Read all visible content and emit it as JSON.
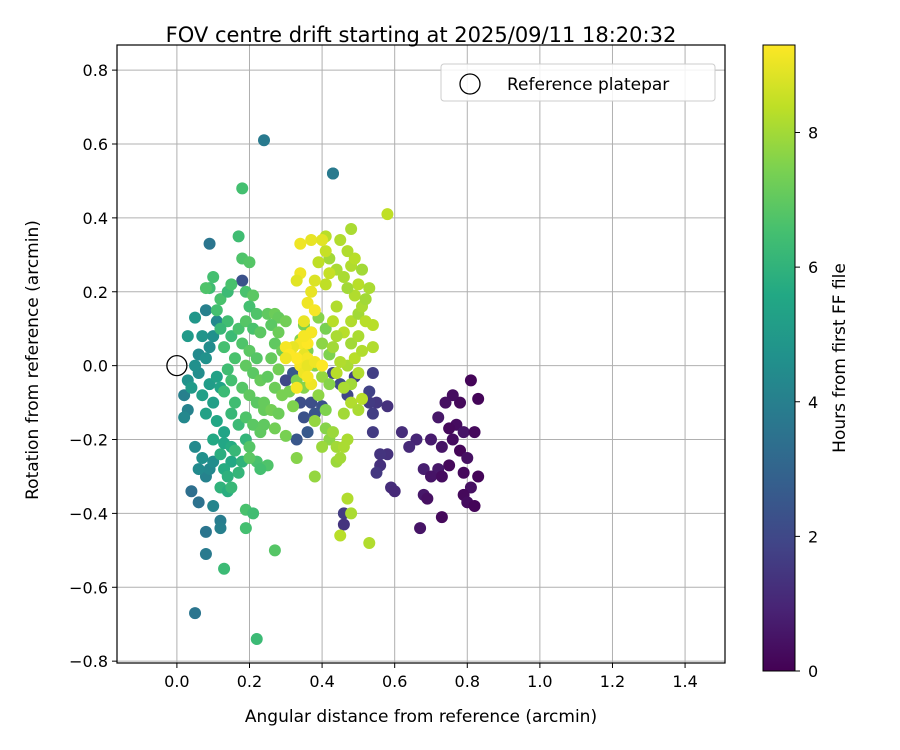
{
  "chart_data": {
    "type": "scatter",
    "title": "FOV centre drift starting at 2025/09/11 18:20:32",
    "xlabel": "Angular distance from reference (arcmin)",
    "ylabel": "Rotation from reference (arcmin)",
    "xlim": [
      -0.165,
      1.51
    ],
    "ylim": [
      -0.805,
      0.868
    ],
    "xticks": [
      0.0,
      0.2,
      0.4,
      0.6,
      0.8,
      1.0,
      1.2,
      1.4
    ],
    "xtick_labels": [
      "0.0",
      "0.2",
      "0.4",
      "0.6",
      "0.8",
      "1.0",
      "1.2",
      "1.4"
    ],
    "yticks": [
      -0.8,
      -0.6,
      -0.4,
      -0.2,
      0.0,
      0.2,
      0.4,
      0.6,
      0.8
    ],
    "ytick_labels": [
      "−0.8",
      "−0.6",
      "−0.4",
      "−0.2",
      "0.0",
      "0.2",
      "0.4",
      "0.6",
      "0.8"
    ],
    "grid": true,
    "colormap": "viridis",
    "colorbar": {
      "label": "Hours from first FF file",
      "min": 0,
      "max": 9.3,
      "ticks": [
        0,
        2,
        4,
        6,
        8
      ],
      "tick_labels": [
        "0",
        "2",
        "4",
        "6",
        "8"
      ]
    },
    "legend": {
      "position": "top-right",
      "entries": [
        {
          "label": "Reference platepar",
          "marker": "open-circle",
          "x": 0.0,
          "y": 0.0
        }
      ]
    },
    "points": [
      [
        0.81,
        -0.04,
        0.1
      ],
      [
        0.78,
        -0.1,
        0.2
      ],
      [
        0.83,
        -0.09,
        0.1
      ],
      [
        0.76,
        -0.08,
        0.3
      ],
      [
        0.74,
        -0.1,
        0.4
      ],
      [
        0.72,
        -0.14,
        0.6
      ],
      [
        0.77,
        -0.16,
        0.3
      ],
      [
        0.75,
        -0.17,
        0.2
      ],
      [
        0.79,
        -0.18,
        0.5
      ],
      [
        0.82,
        -0.18,
        0.2
      ],
      [
        0.7,
        -0.2,
        0.7
      ],
      [
        0.73,
        -0.22,
        0.5
      ],
      [
        0.76,
        -0.2,
        0.3
      ],
      [
        0.78,
        -0.23,
        0.1
      ],
      [
        0.8,
        -0.25,
        0.4
      ],
      [
        0.75,
        -0.27,
        0.2
      ],
      [
        0.72,
        -0.28,
        0.6
      ],
      [
        0.68,
        -0.28,
        0.8
      ],
      [
        0.7,
        -0.3,
        0.5
      ],
      [
        0.73,
        -0.3,
        0.3
      ],
      [
        0.79,
        -0.29,
        0.2
      ],
      [
        0.83,
        -0.3,
        0.1
      ],
      [
        0.81,
        -0.33,
        0.4
      ],
      [
        0.79,
        -0.35,
        0.2
      ],
      [
        0.8,
        -0.37,
        0.3
      ],
      [
        0.82,
        -0.38,
        0.1
      ],
      [
        0.68,
        -0.35,
        0.6
      ],
      [
        0.69,
        -0.36,
        0.4
      ],
      [
        0.73,
        -0.41,
        0.2
      ],
      [
        0.67,
        -0.44,
        0.5
      ],
      [
        0.62,
        -0.18,
        1.2
      ],
      [
        0.66,
        -0.2,
        1.0
      ],
      [
        0.64,
        -0.22,
        1.1
      ],
      [
        0.58,
        -0.24,
        1.3
      ],
      [
        0.56,
        -0.24,
        1.4
      ],
      [
        0.56,
        -0.27,
        1.3
      ],
      [
        0.59,
        -0.33,
        1.2
      ],
      [
        0.6,
        -0.34,
        1.1
      ],
      [
        0.55,
        -0.29,
        1.5
      ],
      [
        0.54,
        -0.18,
        1.6
      ],
      [
        0.54,
        -0.13,
        1.7
      ],
      [
        0.55,
        -0.1,
        1.5
      ],
      [
        0.58,
        -0.11,
        1.3
      ],
      [
        0.53,
        -0.1,
        1.6
      ],
      [
        0.53,
        -0.07,
        1.8
      ],
      [
        0.54,
        -0.02,
        1.7
      ],
      [
        0.47,
        -0.08,
        1.9
      ],
      [
        0.49,
        -0.03,
        1.8
      ],
      [
        0.43,
        -0.02,
        2.0
      ],
      [
        0.45,
        -0.05,
        2.1
      ],
      [
        0.46,
        -0.4,
        1.6
      ],
      [
        0.46,
        -0.43,
        1.4
      ],
      [
        0.37,
        -0.1,
        2.2
      ],
      [
        0.4,
        -0.11,
        2.3
      ],
      [
        0.38,
        -0.13,
        2.4
      ],
      [
        0.34,
        -0.1,
        2.2
      ],
      [
        0.32,
        -0.02,
        2.5
      ],
      [
        0.3,
        -0.04,
        2.0
      ],
      [
        0.35,
        -0.14,
        2.3
      ],
      [
        0.36,
        -0.18,
        2.6
      ],
      [
        0.33,
        -0.2,
        2.5
      ],
      [
        0.18,
        0.23,
        2.3
      ],
      [
        0.24,
        0.61,
        3.8
      ],
      [
        0.43,
        0.52,
        3.9
      ],
      [
        0.43,
        0.52,
        3.8
      ],
      [
        0.09,
        0.33,
        3.6
      ],
      [
        0.05,
        -0.67,
        3.6
      ],
      [
        0.04,
        -0.34,
        3.4
      ],
      [
        0.06,
        -0.37,
        3.5
      ],
      [
        0.08,
        -0.45,
        3.6
      ],
      [
        0.08,
        -0.51,
        3.8
      ],
      [
        0.12,
        -0.42,
        3.9
      ],
      [
        0.12,
        -0.44,
        4.0
      ],
      [
        0.1,
        -0.38,
        4.2
      ],
      [
        0.08,
        -0.3,
        4.1
      ],
      [
        0.06,
        -0.28,
        4.4
      ],
      [
        0.09,
        -0.28,
        4.3
      ],
      [
        0.07,
        -0.25,
        4.6
      ],
      [
        0.1,
        -0.26,
        4.5
      ],
      [
        0.05,
        -0.22,
        4.4
      ],
      [
        0.02,
        -0.08,
        4.0
      ],
      [
        0.03,
        -0.12,
        4.1
      ],
      [
        0.02,
        -0.14,
        4.3
      ],
      [
        0.03,
        -0.04,
        4.7
      ],
      [
        0.06,
        -0.02,
        4.5
      ],
      [
        0.05,
        0.0,
        4.6
      ],
      [
        0.06,
        0.03,
        4.4
      ],
      [
        0.08,
        0.02,
        4.7
      ],
      [
        0.09,
        0.05,
        4.5
      ],
      [
        0.07,
        0.08,
        4.8
      ],
      [
        0.1,
        0.08,
        4.6
      ],
      [
        0.11,
        0.12,
        4.3
      ],
      [
        0.08,
        0.15,
        4.0
      ],
      [
        0.05,
        0.13,
        4.9
      ],
      [
        0.03,
        0.08,
        5.0
      ],
      [
        0.04,
        -0.06,
        5.0
      ],
      [
        0.07,
        -0.08,
        5.2
      ],
      [
        0.09,
        -0.05,
        5.1
      ],
      [
        0.11,
        -0.03,
        5.3
      ],
      [
        0.12,
        -0.06,
        5.4
      ],
      [
        0.1,
        -0.1,
        5.2
      ],
      [
        0.08,
        -0.13,
        5.3
      ],
      [
        0.11,
        -0.15,
        5.5
      ],
      [
        0.13,
        -0.18,
        5.4
      ],
      [
        0.1,
        -0.2,
        5.6
      ],
      [
        0.13,
        -0.21,
        5.5
      ],
      [
        0.15,
        -0.22,
        5.7
      ],
      [
        0.12,
        -0.24,
        5.8
      ],
      [
        0.15,
        -0.26,
        5.6
      ],
      [
        0.13,
        -0.28,
        5.7
      ],
      [
        0.14,
        -0.3,
        5.9
      ],
      [
        0.12,
        -0.33,
        6.0
      ],
      [
        0.14,
        -0.34,
        5.8
      ],
      [
        0.17,
        -0.29,
        6.1
      ],
      [
        0.18,
        -0.26,
        6.0
      ],
      [
        0.16,
        -0.23,
        6.2
      ],
      [
        0.19,
        -0.2,
        6.1
      ],
      [
        0.17,
        -0.16,
        6.3
      ],
      [
        0.15,
        -0.13,
        6.2
      ],
      [
        0.16,
        -0.1,
        6.4
      ],
      [
        0.13,
        -0.07,
        6.3
      ],
      [
        0.15,
        -0.04,
        6.5
      ],
      [
        0.14,
        -0.01,
        6.4
      ],
      [
        0.16,
        0.02,
        6.6
      ],
      [
        0.13,
        0.05,
        6.5
      ],
      [
        0.15,
        0.08,
        6.3
      ],
      [
        0.17,
        0.1,
        6.6
      ],
      [
        0.14,
        0.12,
        6.4
      ],
      [
        0.12,
        0.1,
        6.2
      ],
      [
        0.11,
        0.15,
        6.5
      ],
      [
        0.12,
        0.18,
        6.6
      ],
      [
        0.09,
        0.21,
        6.4
      ],
      [
        0.08,
        0.21,
        6.7
      ],
      [
        0.1,
        0.24,
        6.5
      ],
      [
        0.14,
        0.2,
        6.3
      ],
      [
        0.15,
        0.22,
        6.6
      ],
      [
        0.17,
        0.35,
        6.4
      ],
      [
        0.18,
        0.48,
        6.5
      ],
      [
        0.18,
        0.29,
        6.7
      ],
      [
        0.2,
        0.28,
        6.8
      ],
      [
        0.19,
        0.2,
        6.6
      ],
      [
        0.21,
        0.19,
        6.9
      ],
      [
        0.2,
        0.16,
        6.5
      ],
      [
        0.22,
        0.14,
        6.7
      ],
      [
        0.19,
        0.12,
        6.8
      ],
      [
        0.21,
        0.1,
        6.6
      ],
      [
        0.23,
        0.09,
        6.9
      ],
      [
        0.18,
        0.06,
        6.7
      ],
      [
        0.2,
        0.04,
        6.9
      ],
      [
        0.22,
        0.02,
        6.8
      ],
      [
        0.19,
        0.0,
        7.0
      ],
      [
        0.21,
        -0.02,
        6.9
      ],
      [
        0.23,
        -0.04,
        7.1
      ],
      [
        0.18,
        -0.06,
        6.8
      ],
      [
        0.2,
        -0.08,
        7.0
      ],
      [
        0.22,
        -0.1,
        6.9
      ],
      [
        0.24,
        -0.12,
        7.1
      ],
      [
        0.19,
        -0.14,
        6.7
      ],
      [
        0.21,
        -0.16,
        6.9
      ],
      [
        0.23,
        -0.18,
        7.0
      ],
      [
        0.2,
        -0.22,
        6.8
      ],
      [
        0.22,
        -0.26,
        6.6
      ],
      [
        0.2,
        -0.25,
        6.9
      ],
      [
        0.25,
        -0.27,
        6.7
      ],
      [
        0.23,
        -0.28,
        6.5
      ],
      [
        0.15,
        -0.33,
        6.2
      ],
      [
        0.19,
        -0.39,
        6.6
      ],
      [
        0.21,
        -0.4,
        6.4
      ],
      [
        0.13,
        -0.55,
        6.3
      ],
      [
        0.19,
        -0.44,
        6.5
      ],
      [
        0.27,
        -0.5,
        6.8
      ],
      [
        0.22,
        -0.74,
        6.3
      ],
      [
        0.25,
        0.14,
        7.0
      ],
      [
        0.27,
        0.14,
        7.2
      ],
      [
        0.28,
        0.13,
        7.1
      ],
      [
        0.26,
        0.11,
        6.9
      ],
      [
        0.28,
        0.09,
        7.2
      ],
      [
        0.3,
        0.12,
        7.3
      ],
      [
        0.27,
        0.06,
        7.0
      ],
      [
        0.29,
        0.04,
        7.2
      ],
      [
        0.26,
        0.02,
        7.1
      ],
      [
        0.28,
        -0.01,
        7.3
      ],
      [
        0.25,
        -0.03,
        7.0
      ],
      [
        0.27,
        -0.06,
        7.2
      ],
      [
        0.29,
        -0.08,
        7.4
      ],
      [
        0.24,
        -0.1,
        7.1
      ],
      [
        0.26,
        -0.12,
        7.3
      ],
      [
        0.28,
        -0.13,
        7.2
      ],
      [
        0.24,
        -0.16,
        7.0
      ],
      [
        0.27,
        -0.17,
        7.3
      ],
      [
        0.3,
        -0.19,
        7.4
      ],
      [
        0.32,
        -0.11,
        7.5
      ],
      [
        0.31,
        -0.07,
        7.4
      ],
      [
        0.33,
        -0.04,
        7.5
      ],
      [
        0.35,
        -0.06,
        7.6
      ],
      [
        0.36,
        0.04,
        7.5
      ],
      [
        0.34,
        0.07,
        7.6
      ],
      [
        0.35,
        0.11,
        7.4
      ],
      [
        0.37,
        0.09,
        7.5
      ],
      [
        0.39,
        0.13,
        7.6
      ],
      [
        0.41,
        0.1,
        7.4
      ],
      [
        0.4,
        0.06,
        7.7
      ],
      [
        0.42,
        0.03,
        7.5
      ],
      [
        0.38,
        0.0,
        7.6
      ],
      [
        0.4,
        -0.03,
        7.8
      ],
      [
        0.42,
        -0.05,
        7.6
      ],
      [
        0.39,
        -0.08,
        7.7
      ],
      [
        0.41,
        -0.12,
        7.5
      ],
      [
        0.38,
        -0.15,
        7.8
      ],
      [
        0.41,
        -0.17,
        7.6
      ],
      [
        0.42,
        -0.2,
        7.7
      ],
      [
        0.4,
        -0.22,
        7.9
      ],
      [
        0.33,
        -0.25,
        7.6
      ],
      [
        0.38,
        -0.3,
        7.8
      ],
      [
        0.43,
        -0.18,
        7.9
      ],
      [
        0.44,
        -0.22,
        8.0
      ],
      [
        0.44,
        -0.26,
        7.9
      ],
      [
        0.46,
        -0.22,
        8.1
      ],
      [
        0.45,
        -0.25,
        8.0
      ],
      [
        0.47,
        -0.2,
        8.1
      ],
      [
        0.47,
        -0.36,
        8.2
      ],
      [
        0.48,
        -0.4,
        8.1
      ],
      [
        0.45,
        -0.46,
        8.3
      ],
      [
        0.53,
        -0.48,
        8.2
      ],
      [
        0.46,
        -0.13,
        8.0
      ],
      [
        0.48,
        -0.1,
        8.2
      ],
      [
        0.5,
        -0.12,
        8.1
      ],
      [
        0.51,
        -0.09,
        8.3
      ],
      [
        0.48,
        -0.05,
        8.0
      ],
      [
        0.5,
        -0.02,
        8.2
      ],
      [
        0.47,
        0.0,
        8.1
      ],
      [
        0.49,
        0.02,
        8.3
      ],
      [
        0.51,
        0.04,
        8.2
      ],
      [
        0.48,
        0.06,
        8.0
      ],
      [
        0.5,
        0.08,
        8.1
      ],
      [
        0.46,
        0.09,
        8.3
      ],
      [
        0.48,
        0.12,
        8.2
      ],
      [
        0.5,
        0.14,
        8.0
      ],
      [
        0.52,
        0.12,
        8.3
      ],
      [
        0.51,
        0.16,
        8.1
      ],
      [
        0.49,
        0.19,
        8.2
      ],
      [
        0.47,
        0.21,
        8.0
      ],
      [
        0.5,
        0.22,
        8.3
      ],
      [
        0.46,
        0.24,
        8.1
      ],
      [
        0.48,
        0.27,
        8.2
      ],
      [
        0.51,
        0.26,
        8.0
      ],
      [
        0.49,
        0.29,
        8.3
      ],
      [
        0.47,
        0.31,
        8.2
      ],
      [
        0.44,
        0.26,
        8.1
      ],
      [
        0.42,
        0.29,
        8.0
      ],
      [
        0.45,
        0.34,
        8.2
      ],
      [
        0.48,
        0.37,
        8.1
      ],
      [
        0.41,
        0.35,
        8.3
      ],
      [
        0.58,
        0.41,
        8.4
      ],
      [
        0.54,
        0.05,
        8.2
      ],
      [
        0.54,
        0.11,
        8.3
      ],
      [
        0.53,
        0.21,
        8.1
      ],
      [
        0.52,
        0.18,
        8.0
      ],
      [
        0.44,
        0.16,
        8.2
      ],
      [
        0.43,
        0.12,
        8.3
      ],
      [
        0.44,
        0.08,
        8.1
      ],
      [
        0.43,
        0.05,
        8.0
      ],
      [
        0.45,
        0.01,
        8.2
      ],
      [
        0.44,
        -0.02,
        8.3
      ],
      [
        0.46,
        -0.06,
        8.1
      ],
      [
        0.41,
        0.22,
        8.4
      ],
      [
        0.42,
        0.25,
        8.5
      ],
      [
        0.39,
        0.28,
        8.4
      ],
      [
        0.41,
        0.31,
        8.5
      ],
      [
        0.37,
        0.34,
        9.0
      ],
      [
        0.34,
        0.33,
        9.1
      ],
      [
        0.4,
        0.34,
        8.9
      ],
      [
        0.38,
        0.23,
        8.8
      ],
      [
        0.37,
        0.2,
        9.0
      ],
      [
        0.36,
        0.17,
        9.1
      ],
      [
        0.38,
        0.15,
        9.2
      ],
      [
        0.35,
        0.12,
        9.0
      ],
      [
        0.37,
        0.09,
        9.2
      ],
      [
        0.34,
        0.25,
        9.1
      ],
      [
        0.33,
        0.23,
        8.9
      ],
      [
        0.34,
        0.06,
        9.2
      ],
      [
        0.35,
        0.03,
        9.0
      ],
      [
        0.34,
        0.0,
        9.2
      ],
      [
        0.35,
        -0.02,
        9.1
      ],
      [
        0.33,
        0.02,
        9.3
      ],
      [
        0.36,
        0.02,
        9.2
      ],
      [
        0.32,
        0.05,
        9.0
      ],
      [
        0.3,
        0.05,
        9.2
      ],
      [
        0.31,
        0.03,
        9.3
      ],
      [
        0.37,
        -0.05,
        9.1
      ],
      [
        0.33,
        -0.06,
        9.2
      ],
      [
        0.36,
        0.06,
        9.3
      ],
      [
        0.3,
        0.02,
        9.1
      ],
      [
        0.35,
        0.08,
        9.2
      ],
      [
        0.36,
        0.0,
        9.0
      ],
      [
        0.38,
        0.01,
        9.1
      ],
      [
        0.36,
        -0.03,
        9.2
      ],
      [
        0.4,
        0.0,
        9.3
      ]
    ]
  }
}
